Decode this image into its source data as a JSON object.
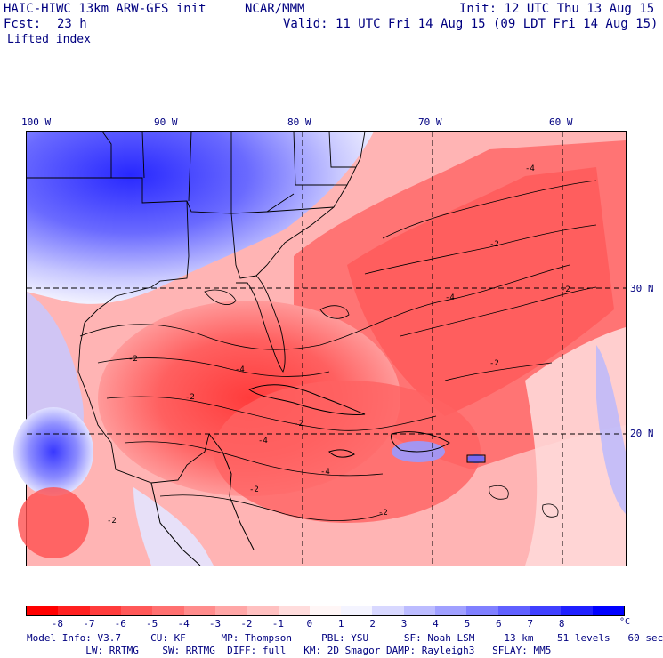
{
  "header": {
    "model_title": "HAIC-HIWC 13km ARW-GFS init",
    "org": "NCAR/MMM",
    "init": "Init: 12 UTC Thu 13 Aug 15",
    "fcst_label": "Fcst:",
    "fcst_value": "23 h",
    "valid": "Valid: 11 UTC Fri 14 Aug 15 (09 LDT Fri 14 Aug 15)",
    "field": "Lifted index"
  },
  "map": {
    "lon_labels": [
      "100 W",
      "90 W",
      "80 W",
      "70 W",
      "60 W"
    ],
    "lat_labels": [
      "30 N",
      "20 N"
    ],
    "contour_labels": [
      "-2",
      "-4",
      "-2",
      "-2",
      "-2",
      "-4",
      "-4",
      "-2",
      "-2",
      "-2",
      "-4",
      "-2",
      "-2",
      "-4"
    ]
  },
  "colorbar": {
    "labels": [
      "-8",
      "-7",
      "-6",
      "-5",
      "-4",
      "-3",
      "-2",
      "-1",
      "0",
      "1",
      "2",
      "3",
      "4",
      "5",
      "6",
      "7",
      "8"
    ],
    "unit": "°C",
    "colors": [
      "#ff0000",
      "#ff2020",
      "#ff3c3c",
      "#ff5858",
      "#ff7070",
      "#ff8c8c",
      "#ffa6a6",
      "#ffc0c0",
      "#ffdcdc",
      "#fff6f6",
      "#f4f4ff",
      "#d8d8ff",
      "#bcbcff",
      "#a0a0ff",
      "#8080ff",
      "#6060ff",
      "#4040ff",
      "#2020ff",
      "#0000ff"
    ]
  },
  "info": {
    "line1": "Model Info: V3.7     CU: KF      MP: Thompson     PBL: YSU      SF: Noah LSM     13 km    51 levels   60 sec",
    "line2": "          LW: RRTMG    SW: RRTMG  DIFF: full   KM: 2D Smagor DAMP: Rayleigh3   SFLAY: MM5"
  }
}
